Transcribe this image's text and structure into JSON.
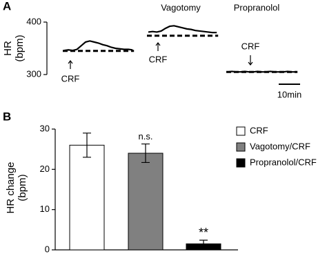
{
  "panels": [
    "A",
    "B"
  ],
  "chart_data": [
    {
      "type": "trace",
      "ylabel_lines": [
        "HR",
        "(bpm)"
      ],
      "ylim": [
        300,
        400
      ],
      "yticks": [
        300,
        400
      ],
      "scale_bar": {
        "value": 10,
        "label": "10min"
      },
      "series": [
        {
          "color": "#000000",
          "annotation": "CRF",
          "baseline": 345,
          "x": [
            0,
            2,
            4,
            6,
            8,
            10,
            12,
            14,
            16,
            18,
            20,
            22,
            24,
            26,
            28,
            30,
            32
          ],
          "values": [
            346,
            347,
            346,
            348,
            355,
            362,
            364,
            362,
            360,
            357,
            355,
            352,
            350,
            349,
            348,
            348,
            347
          ]
        },
        {
          "name": "Vagotomy",
          "color": "#000000",
          "annotation": "CRF",
          "baseline": 374,
          "x": [
            0,
            2,
            4,
            6,
            8,
            10,
            12,
            14,
            16,
            18,
            20,
            22,
            24,
            26,
            28,
            30,
            32
          ],
          "values": [
            381,
            382,
            381,
            383,
            388,
            392,
            393,
            391,
            389,
            387,
            386,
            384,
            383,
            382,
            381,
            380,
            380
          ]
        },
        {
          "name": "Propranolol",
          "color": "#000000",
          "annotation": "CRF",
          "baseline": 305,
          "x": [
            0,
            2,
            4,
            6,
            8,
            10,
            12,
            14,
            16,
            18,
            20,
            22,
            24,
            26,
            28,
            30,
            32
          ],
          "values": [
            305,
            306,
            305,
            305,
            306,
            305,
            305,
            306,
            305,
            305,
            306,
            305,
            305,
            305,
            306,
            305,
            305
          ]
        }
      ]
    },
    {
      "type": "bar",
      "ylabel_lines": [
        "HR change",
        "(bpm)"
      ],
      "ylim": [
        0,
        30
      ],
      "yticks": [
        0,
        10,
        20,
        30
      ],
      "legend": "right",
      "series": [
        {
          "name": "CRF",
          "color": "#ffffff",
          "values": [
            26
          ],
          "errors": [
            3
          ]
        },
        {
          "name": "Vagotomy/CRF",
          "color": "#808080",
          "values": [
            24
          ],
          "errors": [
            2.3
          ],
          "annotation": "n.s."
        },
        {
          "name": "Propranolol/CRF",
          "color": "#000000",
          "values": [
            1.5
          ],
          "errors": [
            0.9
          ],
          "annotation": "**"
        }
      ]
    }
  ]
}
